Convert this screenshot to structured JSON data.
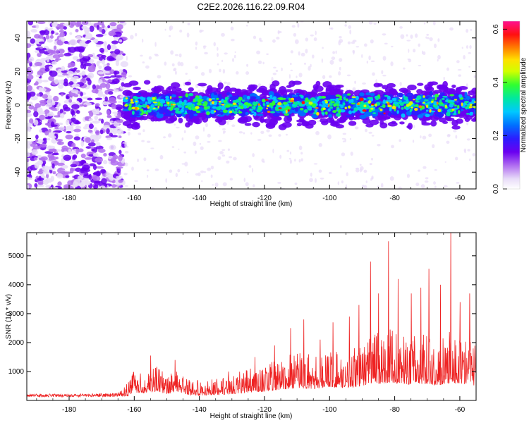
{
  "title": "C2E2.2026.116.22.09.R04",
  "chart_data": [
    {
      "type": "heatmap",
      "title": "C2E2.2026.116.22.09.R04",
      "xlabel": "Height of straight line (km)",
      "ylabel": "Frequency (Hz)",
      "xlim": [
        -193,
        -55
      ],
      "ylim": [
        -50,
        50
      ],
      "x_ticks": [
        -180,
        -160,
        -140,
        -120,
        -100,
        -80,
        -60
      ],
      "y_ticks": [
        -40,
        -20,
        0,
        20,
        40
      ],
      "description_of_field": {
        "background_noise_region_km": [
          -193,
          -163
        ],
        "signal_band_start_km": -163,
        "signal_band_center_hz": 0,
        "signal_band_half_width_hz": 8
      },
      "colorbar": {
        "label": "Normalized spectral amplitude",
        "ticks": [
          0.0,
          0.2,
          0.4,
          0.6
        ],
        "tick_labels": [
          "0.0",
          "0.2",
          "0.4",
          "0.6"
        ],
        "range": [
          0,
          0.63
        ],
        "colormap": [
          "#ffffff",
          "#e8dcf8",
          "#b06df0",
          "#6a00f0",
          "#2c1dff",
          "#0070ff",
          "#00c8ff",
          "#00e8a0",
          "#30ff30",
          "#d0ff00",
          "#ffe000",
          "#ff8000",
          "#ff1010",
          "#ff1090"
        ]
      }
    },
    {
      "type": "line",
      "xlabel": "Height of straight line (km)",
      "ylabel": "SNR (10 * v/v)",
      "xlim": [
        -193,
        -55
      ],
      "ylim": [
        0,
        5800
      ],
      "x_ticks": [
        -180,
        -160,
        -140,
        -120,
        -100,
        -80,
        -60
      ],
      "y_ticks": [
        1000,
        2000,
        3000,
        4000,
        5000
      ],
      "series": [
        {
          "name": "SNR",
          "color": "#ee2222",
          "envelope_x": [
            -193,
            -175,
            -165,
            -162,
            -160,
            -157,
            -154,
            -150,
            -147,
            -144,
            -140,
            -135,
            -130,
            -125,
            -120,
            -115,
            -110,
            -105,
            -100,
            -95,
            -90,
            -87,
            -84,
            -81,
            -78,
            -75,
            -72,
            -69,
            -66,
            -63,
            -60,
            -57,
            -55
          ],
          "envelope_y": [
            220,
            230,
            260,
            600,
            1100,
            1000,
            1250,
            900,
            1250,
            800,
            700,
            750,
            900,
            1100,
            1200,
            1500,
            1700,
            1600,
            1800,
            1700,
            2000,
            2400,
            2300,
            2500,
            2300,
            2200,
            2300,
            2200,
            2100,
            2400,
            2300,
            2200,
            2000
          ],
          "peaks": [
            {
              "x": -160.5,
              "y": 900
            },
            {
              "x": -155,
              "y": 1550
            },
            {
              "x": -147.5,
              "y": 1400
            },
            {
              "x": -131,
              "y": 1000
            },
            {
              "x": -123,
              "y": 1500
            },
            {
              "x": -117,
              "y": 1900
            },
            {
              "x": -112,
              "y": 2500
            },
            {
              "x": -108,
              "y": 2800
            },
            {
              "x": -103,
              "y": 2100
            },
            {
              "x": -99,
              "y": 2700
            },
            {
              "x": -94,
              "y": 2900
            },
            {
              "x": -91,
              "y": 3300
            },
            {
              "x": -87.5,
              "y": 4800
            },
            {
              "x": -85,
              "y": 3700
            },
            {
              "x": -82,
              "y": 5500
            },
            {
              "x": -79,
              "y": 4200
            },
            {
              "x": -75,
              "y": 3700
            },
            {
              "x": -72,
              "y": 3900
            },
            {
              "x": -69.5,
              "y": 4550
            },
            {
              "x": -66,
              "y": 4000
            },
            {
              "x": -62.8,
              "y": 5800
            },
            {
              "x": -60,
              "y": 3400
            },
            {
              "x": -57,
              "y": 3700
            }
          ]
        }
      ]
    }
  ]
}
